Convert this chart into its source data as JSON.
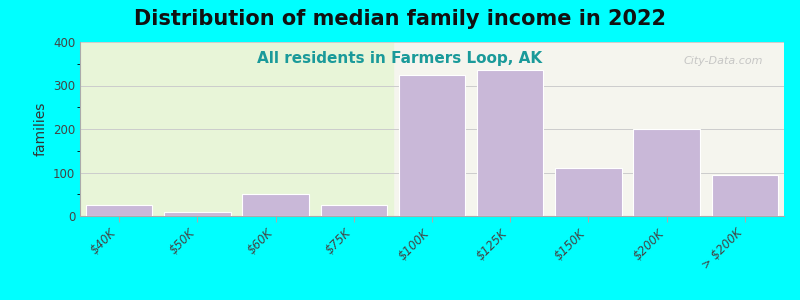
{
  "title": "Distribution of median family income in 2022",
  "subtitle": "All residents in Farmers Loop, AK",
  "xlabel": "",
  "ylabel": "families",
  "watermark": "City-Data.com",
  "background_outer": "#00FFFF",
  "background_inner_left": "#e8f5d8",
  "background_inner_right": "#f5f5ee",
  "bar_color": "#c9b8d8",
  "bar_edge_color": "#ffffff",
  "categories": [
    "$40K",
    "$50K",
    "$60K",
    "$75K",
    "$100K",
    "$125K",
    "$150K",
    "$200K",
    "> $200K"
  ],
  "values": [
    25,
    10,
    50,
    25,
    325,
    335,
    110,
    200,
    95
  ],
  "ylim": [
    0,
    400
  ],
  "yticks": [
    0,
    100,
    200,
    300,
    400
  ],
  "title_fontsize": 15,
  "subtitle_fontsize": 11,
  "ylabel_fontsize": 10,
  "tick_fontsize": 8.5
}
